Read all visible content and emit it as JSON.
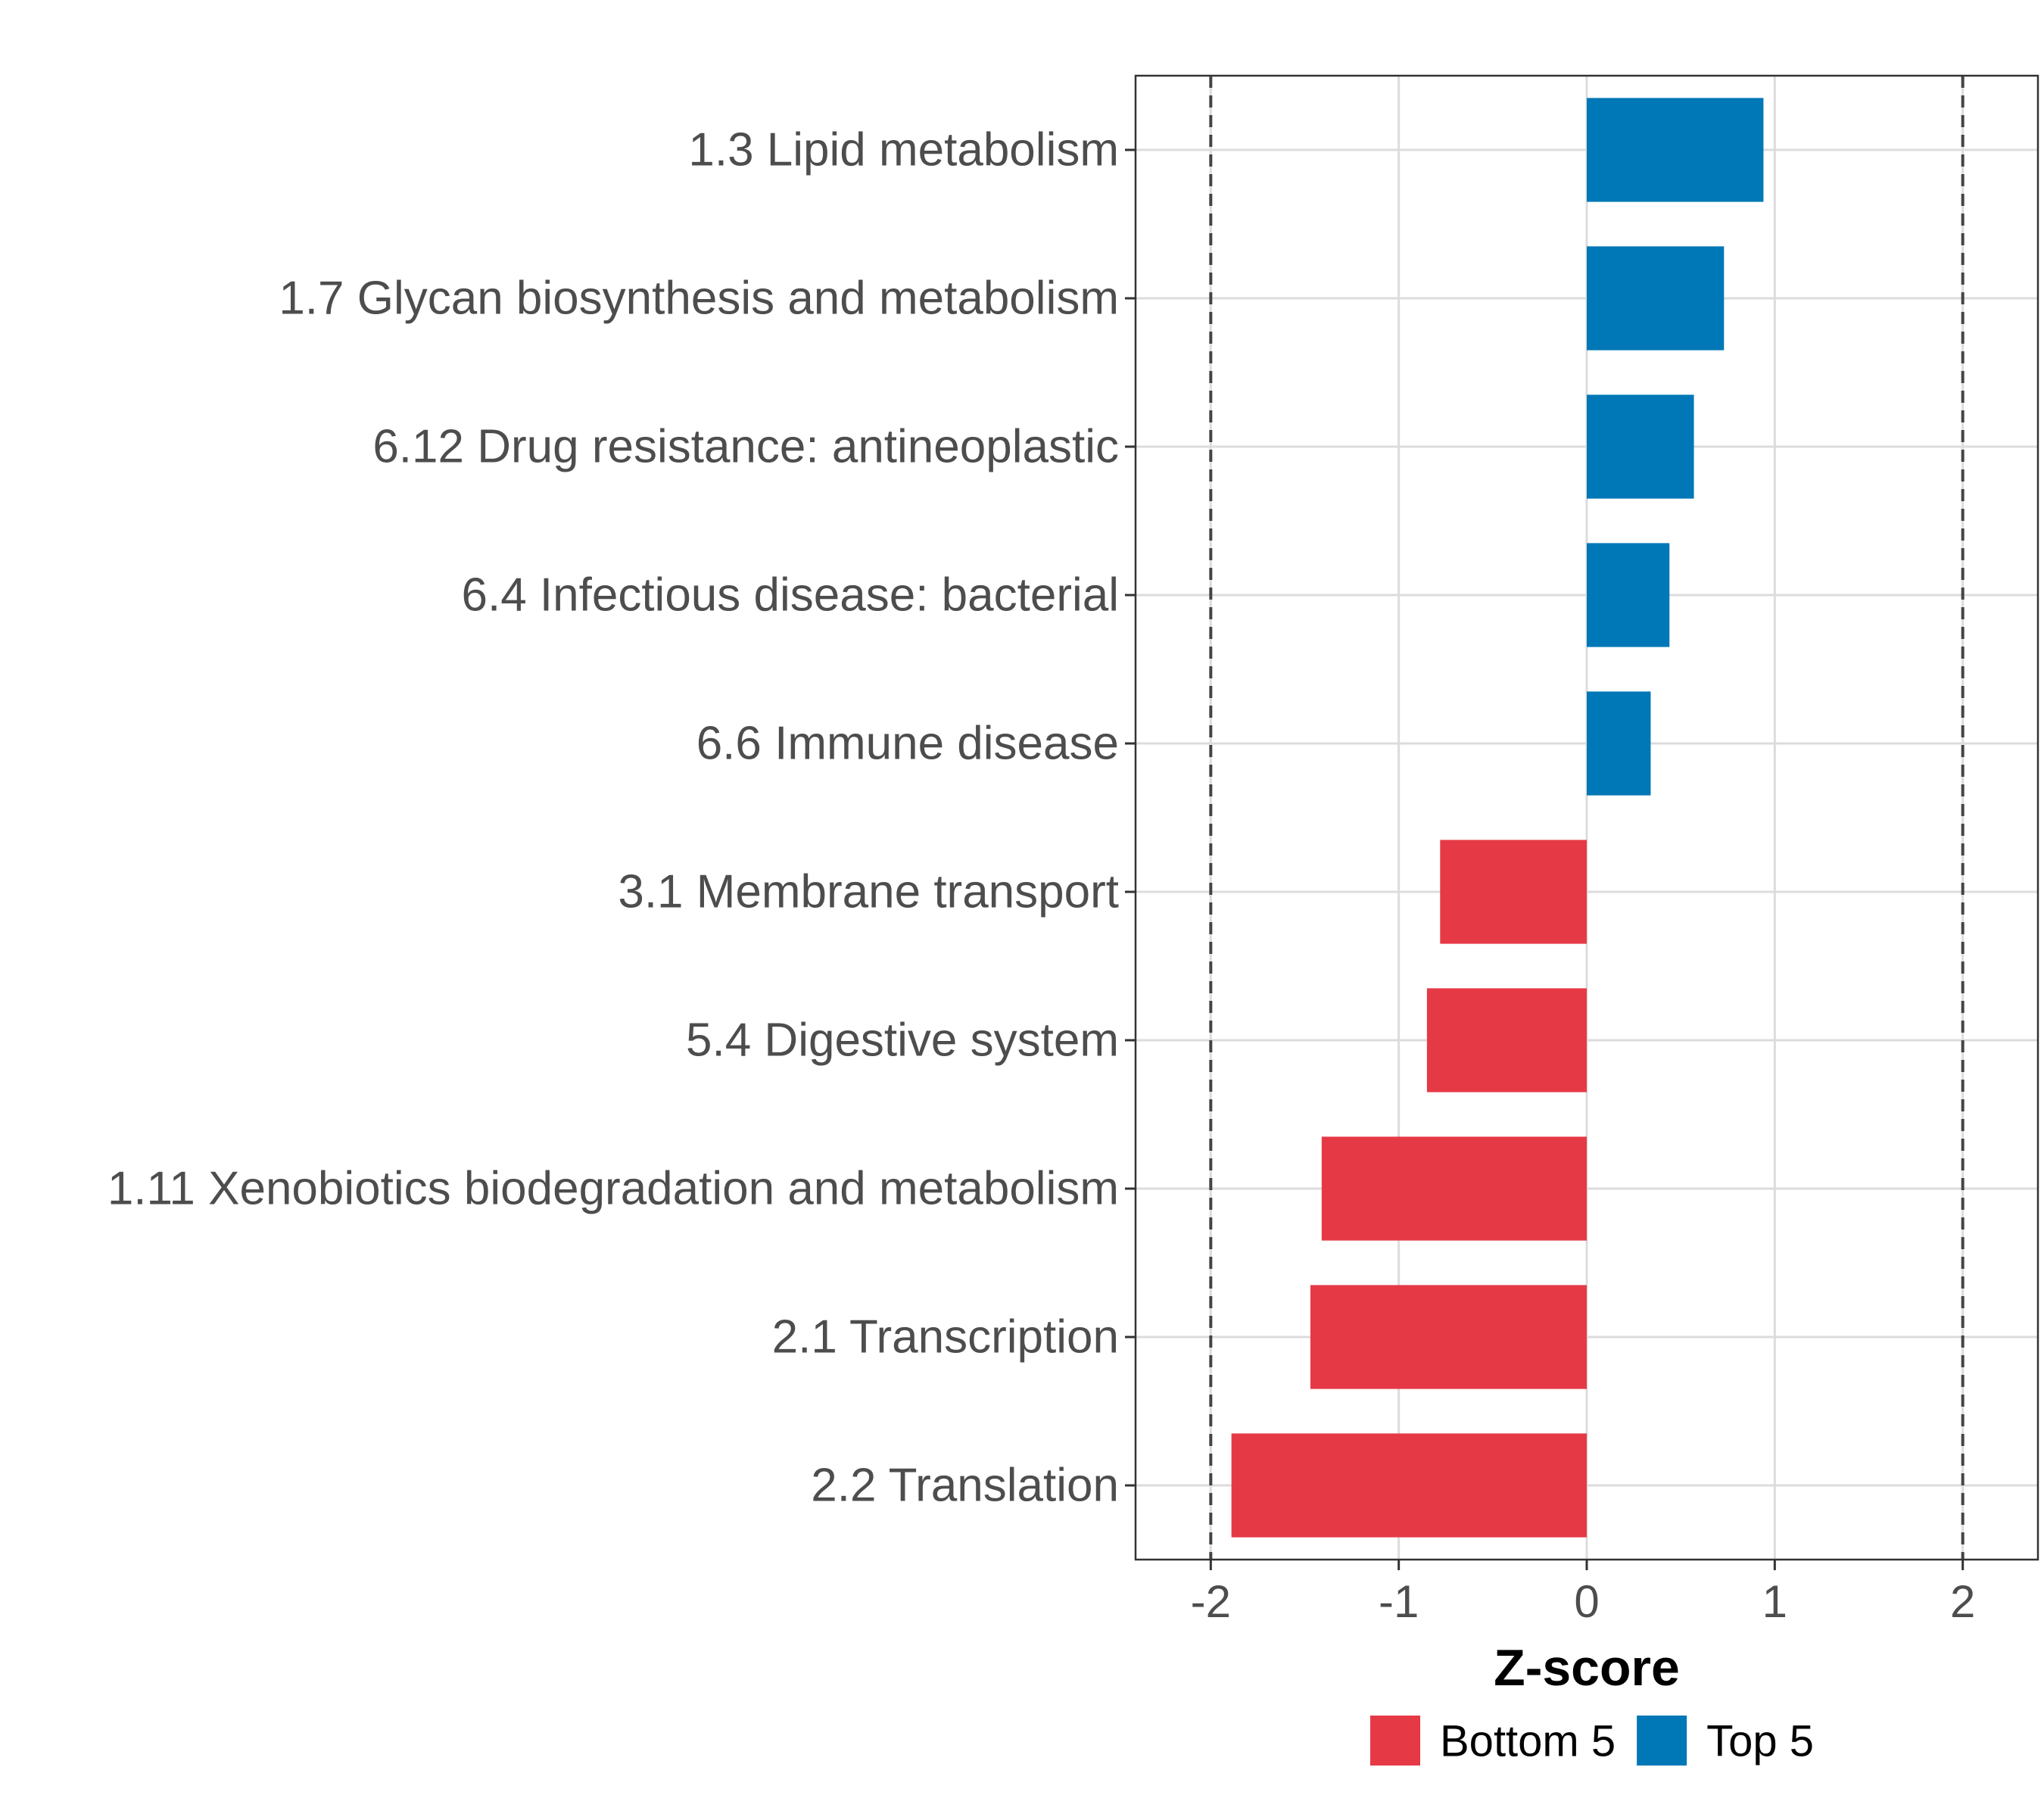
{
  "chart_data": {
    "type": "bar",
    "orientation": "horizontal",
    "xlabel": "Z-score",
    "ylabel": "",
    "xlim": [
      -2.4,
      2.4
    ],
    "xticks": [
      -2,
      -1,
      0,
      1,
      2
    ],
    "xtick_labels": [
      "-2",
      "-1",
      "0",
      "1",
      "2"
    ],
    "reference_lines": [
      -2,
      2
    ],
    "grid": true,
    "legend_position": "bottom",
    "categories": [
      "1.3 Lipid metabolism",
      "1.7 Glycan biosynthesis and metabolism",
      "6.12 Drug resistance: antineoplastic",
      "6.4 Infectious disease: bacterial",
      "6.6 Immune disease",
      "3.1 Membrane transport",
      "5.4 Digestive system",
      "1.11 Xenobiotics biodegradation and metabolism",
      "2.1 Transcription",
      "2.2 Translation"
    ],
    "values": [
      0.94,
      0.73,
      0.57,
      0.44,
      0.34,
      -0.78,
      -0.85,
      -1.41,
      -1.47,
      -1.89
    ],
    "groups": [
      "Top 5",
      "Top 5",
      "Top 5",
      "Top 5",
      "Top 5",
      "Bottom 5",
      "Bottom 5",
      "Bottom 5",
      "Bottom 5",
      "Bottom 5"
    ],
    "legend": [
      {
        "name": "Bottom 5",
        "color": "#e63946"
      },
      {
        "name": "Top 5",
        "color": "#0077b6"
      }
    ]
  }
}
